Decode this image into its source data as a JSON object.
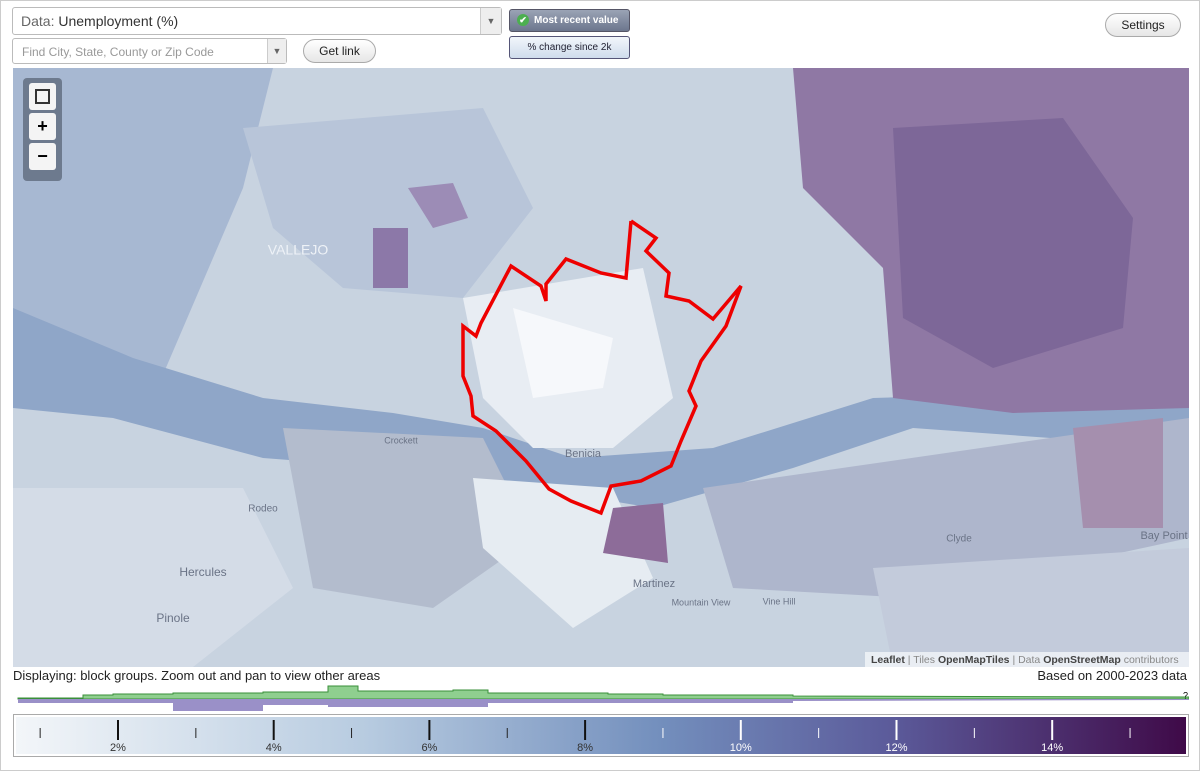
{
  "toolbar": {
    "data_prefix": "Data:",
    "data_value": "Unemployment (%)",
    "search_placeholder": "Find City, State, County or Zip Code",
    "get_link": "Get link",
    "most_recent": "Most recent value",
    "pct_change": "% change since 2k",
    "settings": "Settings"
  },
  "controls": {
    "zoom_in": "+",
    "zoom_out": "−"
  },
  "map_labels": [
    "VALLEJO",
    "Crockett",
    "Benicia",
    "Rodeo",
    "Hercules",
    "Pinole",
    "Martinez",
    "Mountain View",
    "Vine Hill",
    "Clyde",
    "Bay Point"
  ],
  "attribution": {
    "leaflet": "Leaflet",
    "sep1": "|",
    "tiles": "Tiles",
    "openmaptiles": "OpenMapTiles",
    "sep2": "| Data",
    "osm": "OpenStreetMap",
    "contributors": "contributors"
  },
  "footer": {
    "displaying": "Displaying: block groups. Zoom out and pan to view other areas",
    "based_on": "Based on 2000-2023 data",
    "help": "?"
  },
  "legend": {
    "labels": [
      "2%",
      "4%",
      "6%",
      "8%",
      "10%",
      "12%",
      "14%"
    ]
  }
}
